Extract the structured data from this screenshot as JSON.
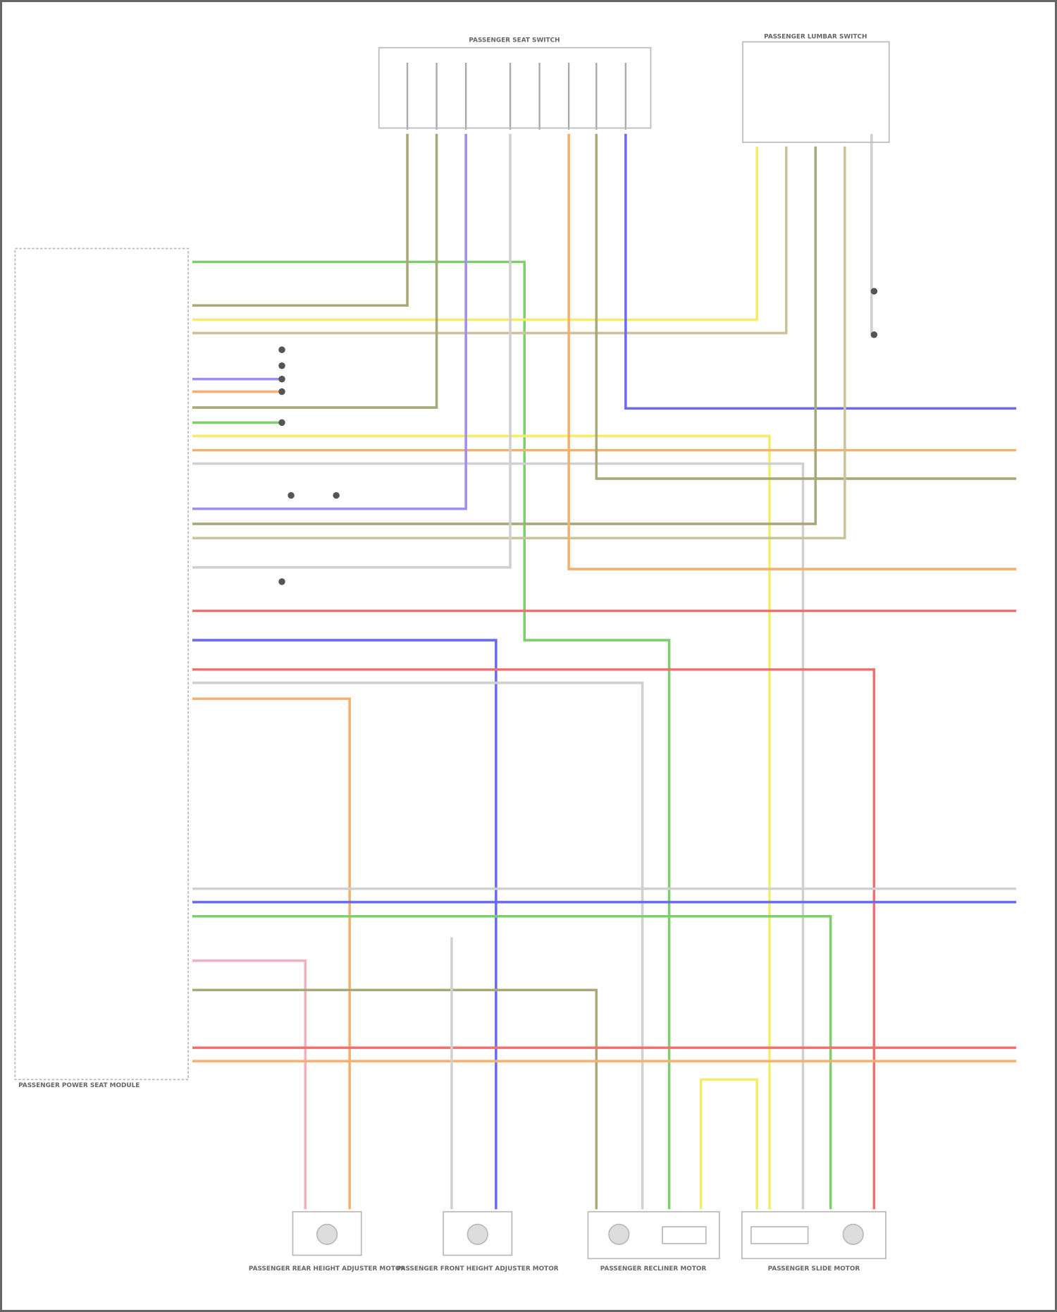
{
  "components": {
    "seat_switch": "PASSENGER SEAT SWITCH",
    "lumbar_switch": "PASSENGER LUMBAR SWITCH",
    "module": "PASSENGER POWER SEAT MODULE",
    "rear_height_motor": "PASSENGER REAR HEIGHT ADJUSTER MOTOR",
    "front_height_motor": "PASSENGER FRONT HEIGHT ADJUSTER MOTOR",
    "recliner_motor": "PASSENGER RECLINER MOTOR",
    "slide_motor": "PASSENGER SLIDE MOTOR"
  },
  "wire_colors": {
    "green": "#7ccf6a",
    "yellow": "#f3ee6a",
    "tan": "#c9c29a",
    "blue": "#6b6bf0",
    "purple": "#a38ef0",
    "orange": "#f5b070",
    "red": "#f07070",
    "pink": "#f5b0c0",
    "gray": "#d0d0d0",
    "olive": "#a8a878"
  }
}
